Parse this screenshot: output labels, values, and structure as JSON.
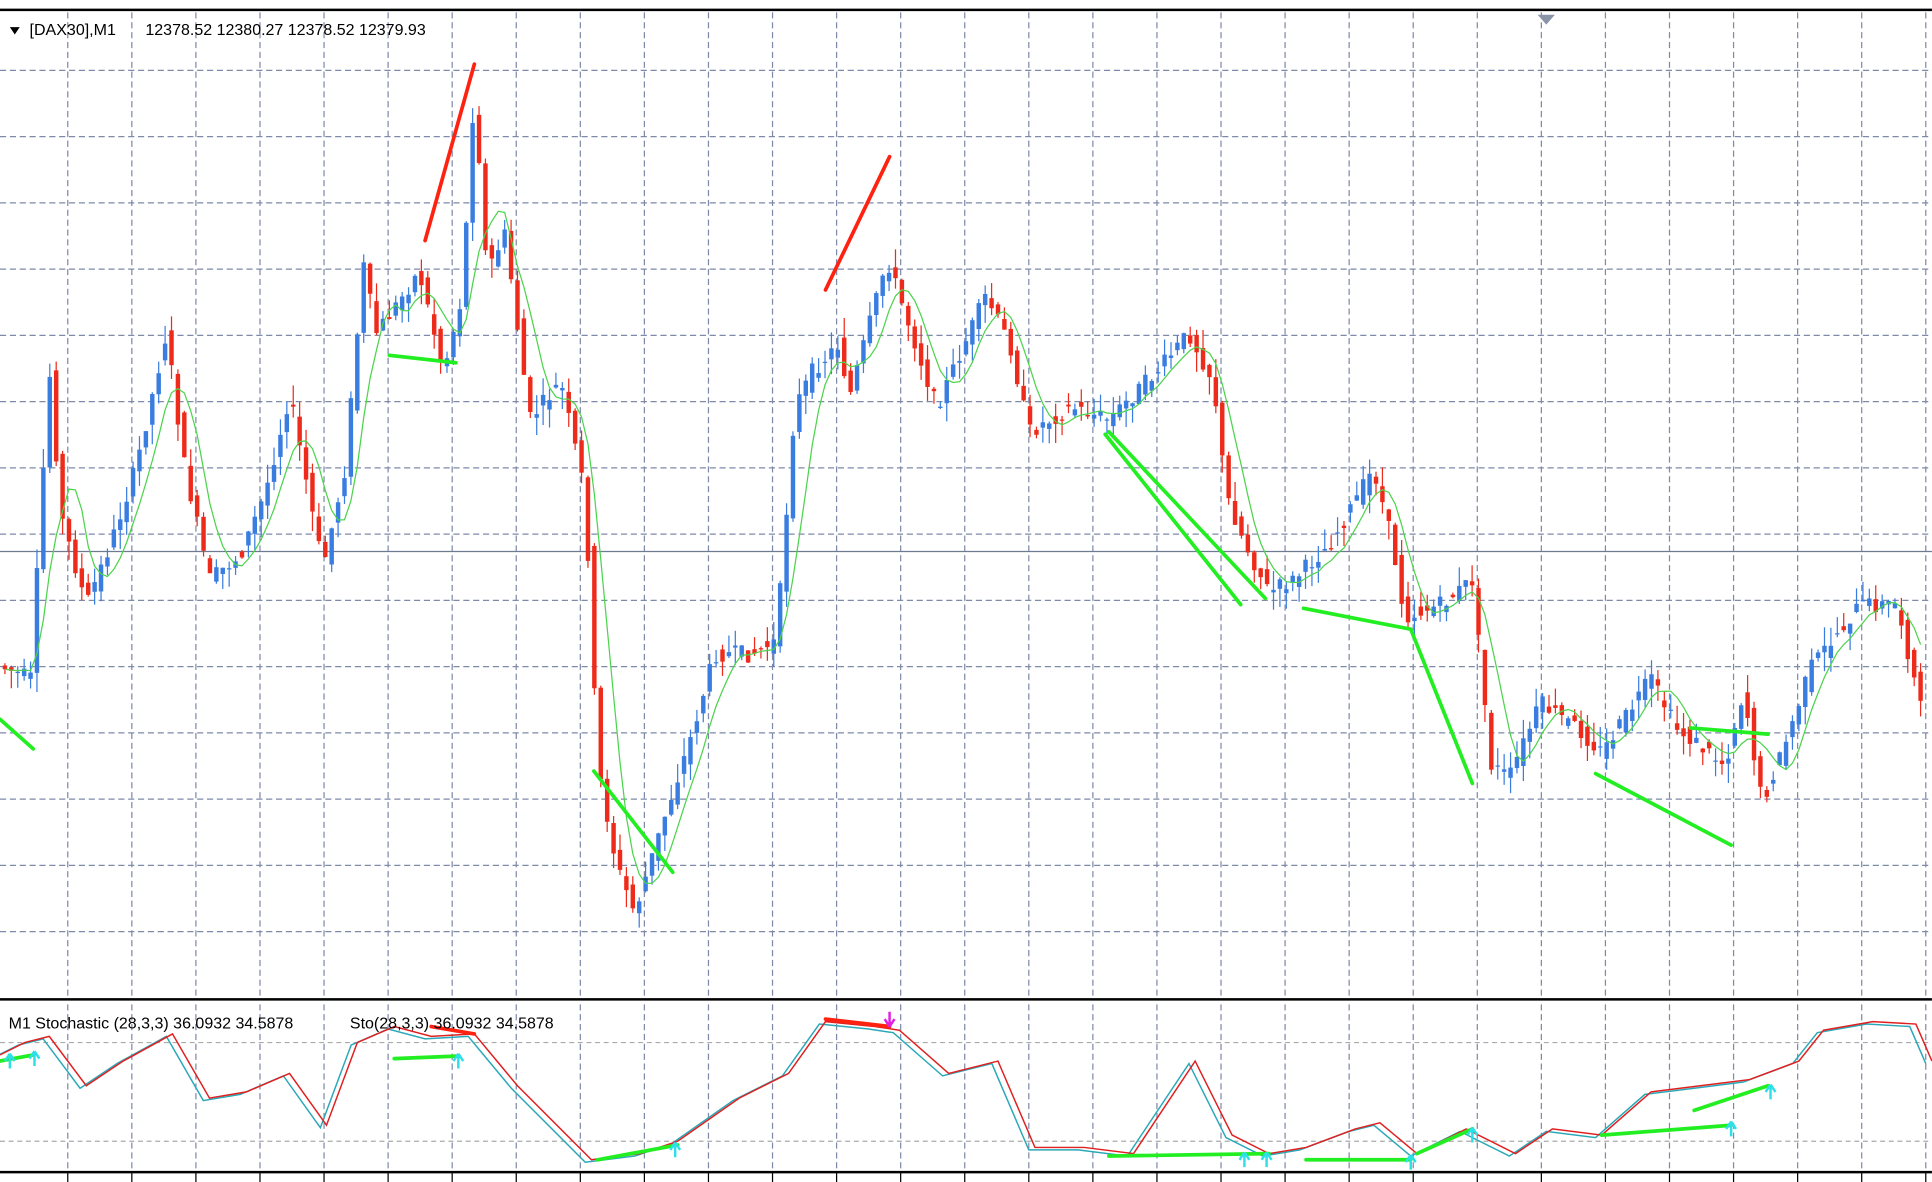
{
  "main_window": {
    "symbol": "[DAX30],M1",
    "ohlc": "12378.52 12380.27 12378.52 12379.93"
  },
  "indicator_window": {
    "label": "M1 Stochastic (28,3,3) 36.0932 34.5878",
    "label2": "Sto(28,3,3) 36.0932 34.5878"
  }
}
